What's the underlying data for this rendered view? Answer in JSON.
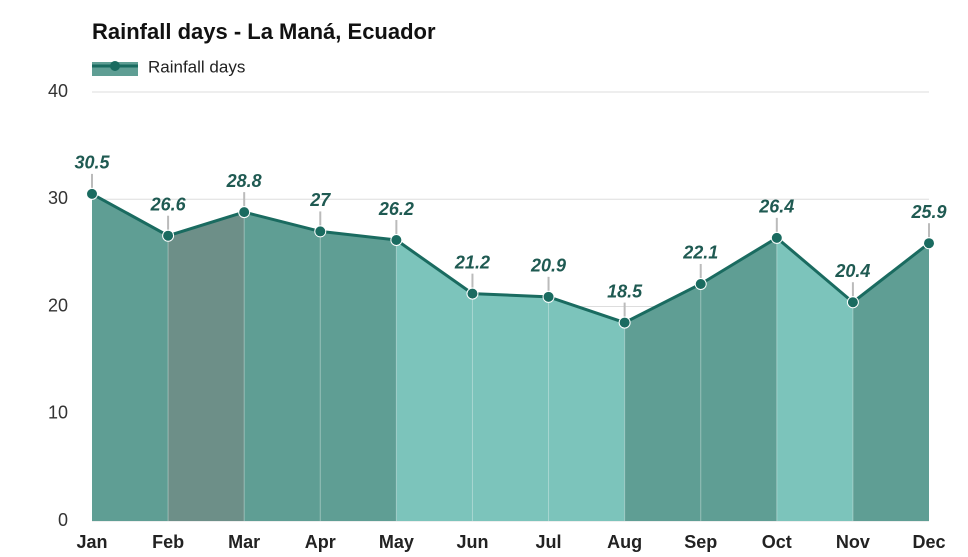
{
  "chart_data": {
    "type": "area",
    "title": "Rainfall days - La Maná, Ecuador",
    "categories": [
      "Jan",
      "Feb",
      "Mar",
      "Apr",
      "May",
      "Jun",
      "Jul",
      "Aug",
      "Sep",
      "Oct",
      "Nov",
      "Dec"
    ],
    "series": [
      {
        "name": "Rainfall days",
        "color": "#1a6b60",
        "values": [
          30.5,
          26.6,
          28.8,
          27,
          26.2,
          21.2,
          20.9,
          18.5,
          22.1,
          26.4,
          20.4,
          25.9
        ]
      }
    ],
    "ylim": [
      0,
      40
    ],
    "yticks": [
      0,
      10,
      20,
      30,
      40
    ],
    "grid": true,
    "legend": "top-left"
  }
}
